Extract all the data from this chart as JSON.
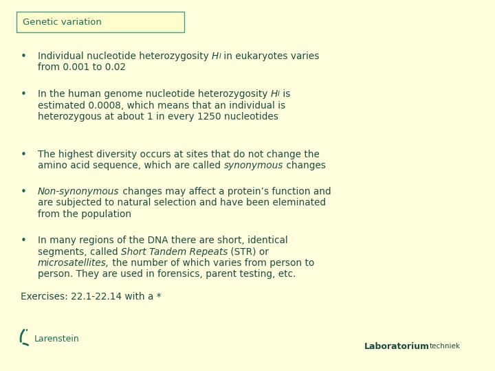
{
  "background_color": "#ffffdd",
  "title_box_fill": "#ffffcc",
  "title_box_border": "#4a9a8a",
  "title_text": "Genetic variation",
  "title_color": "#1a6a5a",
  "bullet_color": "#1a6a5a",
  "text_color": "#1a4a40",
  "font_size": 9.8,
  "title_font_size": 9.5,
  "exercises_font_size": 9.8,
  "footer_font_size": 9.0,
  "exercises_text": "Exercises: 22.1-22.14 with a *",
  "larenstein_text": "Larenstein",
  "lab_text1": "Laboratorium",
  "lab_text2": "techniek"
}
